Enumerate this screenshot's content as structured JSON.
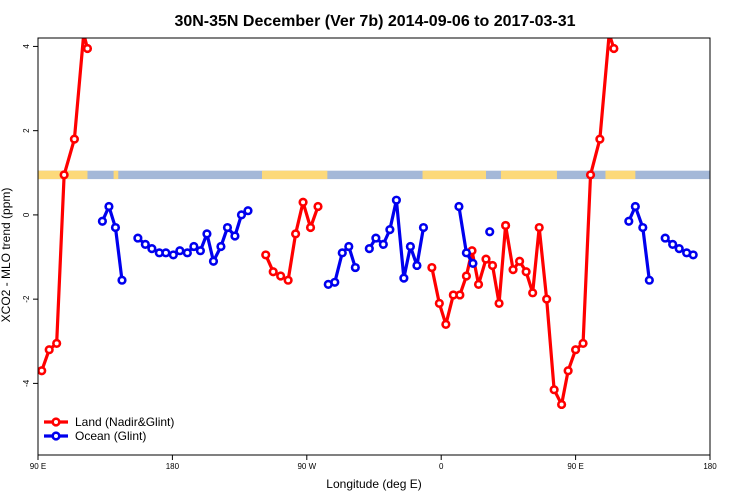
{
  "chart_data": {
    "type": "line",
    "title": "30N-35N December (Ver 7b)   2014-09-06 to 2017-03-31",
    "xlabel": "Longitude (deg E)",
    "ylabel": "XCO2 - MLO trend (ppm)",
    "xlim": [
      90,
      450
    ],
    "ylim": [
      -5.7,
      4.2
    ],
    "x_ticks": [
      {
        "value": 90,
        "label": "90 E"
      },
      {
        "value": 162,
        "label": "180"
      },
      {
        "value": 234,
        "label": "90 W"
      },
      {
        "value": 306,
        "label": "0"
      },
      {
        "value": 378,
        "label": "90 E"
      },
      {
        "value": 450,
        "label": "180"
      }
    ],
    "y_ticks": [
      {
        "value": 4,
        "label": "4"
      },
      {
        "value": 2,
        "label": "2"
      },
      {
        "value": 0,
        "label": "0"
      },
      {
        "value": -2,
        "label": "-2"
      },
      {
        "value": -4,
        "label": "-4"
      }
    ],
    "grid": false,
    "legend": "bottom-left",
    "surface_band": {
      "y_range": [
        0.85,
        1.05
      ],
      "land_color": "#fcd97a",
      "ocean_color": "#a4b8d8",
      "land_segments": [
        [
          90,
          116.5
        ],
        [
          130.5,
          133
        ],
        [
          210,
          245
        ],
        [
          296,
          330
        ],
        [
          338,
          368
        ],
        [
          394,
          410
        ]
      ]
    },
    "series": [
      {
        "name": "Land (Nadir&Glint)",
        "color": "#ff0000",
        "segments": [
          [
            [
              92,
              -3.7
            ],
            [
              96,
              -3.2
            ],
            [
              100,
              -3.05
            ],
            [
              104,
              0.95
            ],
            [
              109.5,
              1.8
            ],
            [
              114.5,
              4.3
            ],
            [
              116.5,
              3.95
            ]
          ],
          [
            [
              212,
              -0.95
            ],
            [
              216,
              -1.35
            ],
            [
              220,
              -1.45
            ],
            [
              224,
              -1.55
            ],
            [
              228,
              -0.45
            ],
            [
              232,
              0.3
            ],
            [
              236,
              -0.3
            ],
            [
              240,
              0.2
            ]
          ],
          [
            [
              301,
              -1.25
            ],
            [
              305,
              -2.1
            ],
            [
              308.5,
              -2.6
            ],
            [
              312.5,
              -1.9
            ],
            [
              316,
              -1.9
            ],
            [
              319.5,
              -1.45
            ],
            [
              322.5,
              -0.85
            ],
            [
              326,
              -1.65
            ],
            [
              330,
              -1.05
            ],
            [
              333.5,
              -1.2
            ],
            [
              337,
              -2.1
            ],
            [
              340.5,
              -0.25
            ],
            [
              344.5,
              -1.3
            ],
            [
              348,
              -1.1
            ],
            [
              351.5,
              -1.35
            ],
            [
              355,
              -1.85
            ],
            [
              358.5,
              -0.3
            ],
            [
              362.5,
              -2.0
            ],
            [
              366.5,
              -4.15
            ],
            [
              370.5,
              -4.5
            ],
            [
              374,
              -3.7
            ],
            [
              378,
              -3.2
            ],
            [
              382,
              -3.05
            ],
            [
              386,
              0.95
            ],
            [
              391,
              1.8
            ],
            [
              396,
              4.3
            ],
            [
              398.5,
              3.95
            ]
          ]
        ]
      },
      {
        "name": "Ocean (Glint)",
        "color": "#0000ee",
        "segments": [
          [
            [
              124.5,
              -0.15
            ],
            [
              128,
              0.2
            ],
            [
              131.5,
              -0.3
            ],
            [
              135,
              -1.55
            ]
          ],
          [
            [
              143.5,
              -0.55
            ],
            [
              147.5,
              -0.7
            ],
            [
              151,
              -0.8
            ],
            [
              155,
              -0.9
            ],
            [
              158.5,
              -0.9
            ],
            [
              162.5,
              -0.95
            ],
            [
              166,
              -0.85
            ],
            [
              170,
              -0.9
            ],
            [
              173.5,
              -0.75
            ],
            [
              177,
              -0.85
            ],
            [
              180.5,
              -0.45
            ],
            [
              184,
              -1.1
            ],
            [
              188,
              -0.75
            ],
            [
              191.5,
              -0.3
            ],
            [
              195.5,
              -0.5
            ],
            [
              199,
              0.0
            ],
            [
              202.5,
              0.1
            ]
          ],
          [
            [
              245.5,
              -1.65
            ],
            [
              249,
              -1.6
            ],
            [
              253,
              -0.9
            ],
            [
              256.5,
              -0.75
            ],
            [
              260,
              -1.25
            ]
          ],
          [
            [
              267.5,
              -0.8
            ],
            [
              271,
              -0.55
            ],
            [
              275,
              -0.7
            ],
            [
              278.5,
              -0.35
            ],
            [
              282,
              0.35
            ],
            [
              286,
              -1.5
            ],
            [
              289.5,
              -0.75
            ],
            [
              293,
              -1.2
            ],
            [
              296.5,
              -0.3
            ]
          ],
          [
            [
              315.5,
              0.2
            ],
            [
              319.5,
              -0.9
            ],
            [
              323,
              -1.15
            ]
          ],
          [
            [
              332,
              -0.4
            ]
          ],
          [
            [
              406.5,
              -0.15
            ],
            [
              410,
              0.2
            ],
            [
              414,
              -0.3
            ],
            [
              417.5,
              -1.55
            ]
          ],
          [
            [
              426,
              -0.55
            ],
            [
              430,
              -0.7
            ],
            [
              433.5,
              -0.8
            ],
            [
              437.5,
              -0.9
            ],
            [
              441,
              -0.95
            ]
          ]
        ]
      }
    ]
  }
}
